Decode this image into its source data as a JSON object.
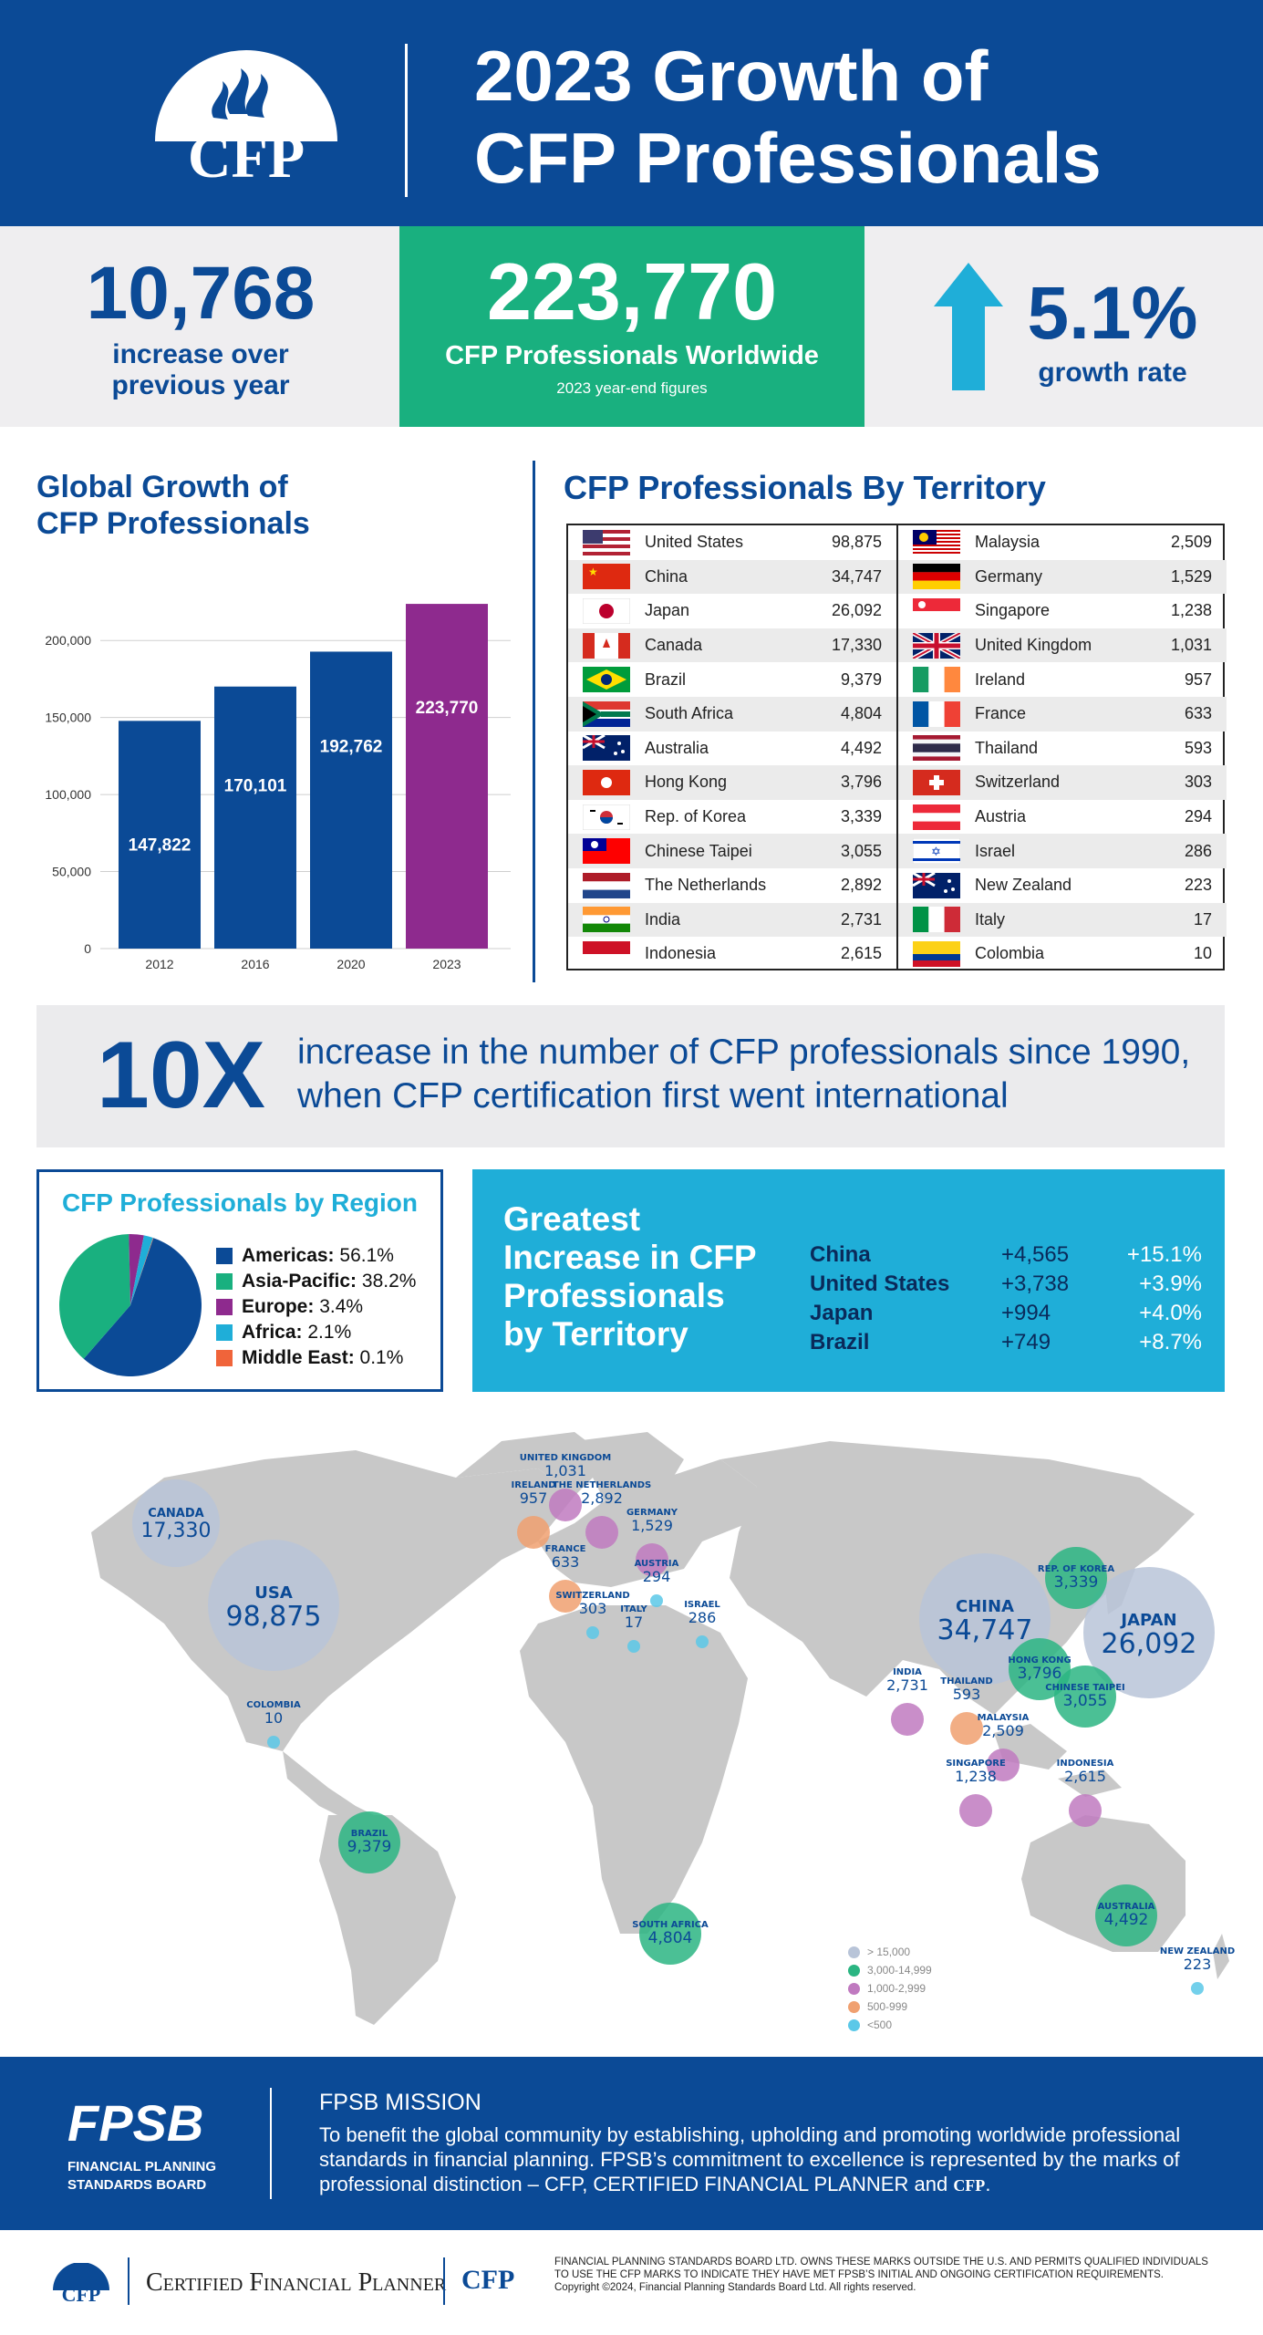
{
  "header": {
    "logo_text": "CFP",
    "title_line1": "2023 Growth of",
    "title_line2": "CFP Professionals",
    "colors": {
      "brand_blue": "#0b4a96",
      "green": "#19b07f",
      "cyan": "#1faed8",
      "purple": "#8e2a8e"
    }
  },
  "stats": {
    "increase_value": "10,768",
    "increase_label1": "increase over",
    "increase_label2": "previous year",
    "total_value": "223,770",
    "total_label": "CFP Professionals Worldwide",
    "total_sub": "2023 year-end figures",
    "growth_value": "5.1%",
    "growth_label": "growth rate",
    "growth_icon": "up-arrow-icon"
  },
  "global_growth": {
    "title_line1": "Global Growth of",
    "title_line2": "CFP Professionals"
  },
  "chart_data": {
    "type": "bar",
    "categories": [
      "2012",
      "2016",
      "2020",
      "2023"
    ],
    "values": [
      147822,
      170101,
      192762,
      223770
    ],
    "value_labels": [
      "147,822",
      "170,101",
      "192,762",
      "223,770"
    ],
    "colors": [
      "#0b4a96",
      "#0b4a96",
      "#0b4a96",
      "#8e2a8e"
    ],
    "ylim": [
      0,
      225000
    ],
    "yticks": [
      0,
      50000,
      100000,
      150000,
      200000
    ],
    "ytick_labels": [
      "0",
      "50,000",
      "100,000",
      "150,000",
      "200,000"
    ],
    "grid": true
  },
  "territory": {
    "title": "CFP Professionals By Territory",
    "left": [
      {
        "name": "United States",
        "value": "98,875",
        "flag": "us"
      },
      {
        "name": "China",
        "value": "34,747",
        "flag": "cn"
      },
      {
        "name": "Japan",
        "value": "26,092",
        "flag": "jp"
      },
      {
        "name": "Canada",
        "value": "17,330",
        "flag": "ca"
      },
      {
        "name": "Brazil",
        "value": "9,379",
        "flag": "br"
      },
      {
        "name": "South Africa",
        "value": "4,804",
        "flag": "za"
      },
      {
        "name": "Australia",
        "value": "4,492",
        "flag": "au"
      },
      {
        "name": "Hong Kong",
        "value": "3,796",
        "flag": "hk"
      },
      {
        "name": "Rep. of Korea",
        "value": "3,339",
        "flag": "kr"
      },
      {
        "name": "Chinese Taipei",
        "value": "3,055",
        "flag": "tw"
      },
      {
        "name": "The Netherlands",
        "value": "2,892",
        "flag": "nl"
      },
      {
        "name": "India",
        "value": "2,731",
        "flag": "in"
      },
      {
        "name": "Indonesia",
        "value": "2,615",
        "flag": "id"
      }
    ],
    "right": [
      {
        "name": "Malaysia",
        "value": "2,509",
        "flag": "my"
      },
      {
        "name": "Germany",
        "value": "1,529",
        "flag": "de"
      },
      {
        "name": "Singapore",
        "value": "1,238",
        "flag": "sg"
      },
      {
        "name": "United Kingdom",
        "value": "1,031",
        "flag": "gb"
      },
      {
        "name": "Ireland",
        "value": "957",
        "flag": "ie"
      },
      {
        "name": "France",
        "value": "633",
        "flag": "fr"
      },
      {
        "name": "Thailand",
        "value": "593",
        "flag": "th"
      },
      {
        "name": "Switzerland",
        "value": "303",
        "flag": "ch"
      },
      {
        "name": "Austria",
        "value": "294",
        "flag": "at"
      },
      {
        "name": "Israel",
        "value": "286",
        "flag": "il"
      },
      {
        "name": "New Zealand",
        "value": "223",
        "flag": "nz"
      },
      {
        "name": "Italy",
        "value": "17",
        "flag": "it"
      },
      {
        "name": "Colombia",
        "value": "10",
        "flag": "co"
      }
    ]
  },
  "tenx": {
    "big": "10X",
    "line1": "increase in the number of CFP professionals since 1990,",
    "line2": "when CFP certification first went international"
  },
  "region": {
    "title": "CFP Professionals by Region",
    "items": [
      {
        "name": "Americas:",
        "pct": "56.1%",
        "value": 56.1,
        "color": "#0b4a96"
      },
      {
        "name": "Asia-Pacific:",
        "pct": "38.2%",
        "value": 38.2,
        "color": "#19b07f"
      },
      {
        "name": "Europe:",
        "pct": "3.4%",
        "value": 3.4,
        "color": "#8e2a8e"
      },
      {
        "name": "Africa:",
        "pct": "2.1%",
        "value": 2.1,
        "color": "#1faed8"
      },
      {
        "name": "Middle East:",
        "pct": "0.1%",
        "value": 0.1,
        "color": "#f0643a"
      }
    ]
  },
  "greatest": {
    "title_lines": [
      "Greatest",
      "Increase in CFP",
      "Professionals",
      "by Territory"
    ],
    "rows": [
      {
        "name": "China",
        "abs": "+4,565",
        "pct": "+15.1%"
      },
      {
        "name": "United States",
        "abs": "+3,738",
        "pct": "+3.9%"
      },
      {
        "name": "Japan",
        "abs": "+994",
        "pct": "+4.0%"
      },
      {
        "name": "Brazil",
        "abs": "+749",
        "pct": "+8.7%"
      }
    ]
  },
  "map": {
    "labels": [
      {
        "name": "CANADA",
        "value": "17,330",
        "size": "big",
        "color": "#b8c4d8"
      },
      {
        "name": "USA",
        "value": "98,875",
        "size": "huge",
        "color": "#b8c4d8"
      },
      {
        "name": "COLOMBIA",
        "value": "10",
        "size": "tiny",
        "color": "#5bc8e8"
      },
      {
        "name": "BRAZIL",
        "value": "9,379",
        "size": "mid",
        "color": "#2bb582"
      },
      {
        "name": "SOUTH AFRICA",
        "value": "4,804",
        "size": "mid",
        "color": "#2bb582"
      },
      {
        "name": "UNITED KINGDOM",
        "value": "1,031",
        "size": "small",
        "color": "#c07ac0"
      },
      {
        "name": "IRELAND",
        "value": "957",
        "size": "small",
        "color": "#f0a070"
      },
      {
        "name": "THE NETHERLANDS",
        "value": "2,892",
        "size": "small",
        "color": "#c07ac0"
      },
      {
        "name": "GERMANY",
        "value": "1,529",
        "size": "small",
        "color": "#c07ac0"
      },
      {
        "name": "FRANCE",
        "value": "633",
        "size": "small",
        "color": "#f0a070"
      },
      {
        "name": "AUSTRIA",
        "value": "294",
        "size": "tiny",
        "color": "#5bc8e8"
      },
      {
        "name": "SWITZERLAND",
        "value": "303",
        "size": "tiny",
        "color": "#5bc8e8"
      },
      {
        "name": "ITALY",
        "value": "17",
        "size": "tiny",
        "color": "#5bc8e8"
      },
      {
        "name": "ISRAEL",
        "value": "286",
        "size": "tiny",
        "color": "#5bc8e8"
      },
      {
        "name": "CHINA",
        "value": "34,747",
        "size": "huge",
        "color": "#b8c4d8"
      },
      {
        "name": "JAPAN",
        "value": "26,092",
        "size": "huge",
        "color": "#b8c4d8"
      },
      {
        "name": "REP. OF KOREA",
        "value": "3,339",
        "size": "mid",
        "color": "#2bb582"
      },
      {
        "name": "HONG KONG",
        "value": "3,796",
        "size": "mid",
        "color": "#2bb582"
      },
      {
        "name": "CHINESE TAIPEI",
        "value": "3,055",
        "size": "mid",
        "color": "#2bb582"
      },
      {
        "name": "INDIA",
        "value": "2,731",
        "size": "small",
        "color": "#c07ac0"
      },
      {
        "name": "THAILAND",
        "value": "593",
        "size": "small",
        "color": "#f0a070"
      },
      {
        "name": "MALAYSIA",
        "value": "2,509",
        "size": "small",
        "color": "#c07ac0"
      },
      {
        "name": "SINGAPORE",
        "value": "1,238",
        "size": "small",
        "color": "#c07ac0"
      },
      {
        "name": "INDONESIA",
        "value": "2,615",
        "size": "small",
        "color": "#c07ac0"
      },
      {
        "name": "AUSTRALIA",
        "value": "4,492",
        "size": "mid",
        "color": "#2bb582"
      },
      {
        "name": "NEW ZEALAND",
        "value": "223",
        "size": "tiny",
        "color": "#5bc8e8"
      }
    ],
    "legend": [
      {
        "label": "> 15,000",
        "color": "#b8c4d8"
      },
      {
        "label": "3,000-14,999",
        "color": "#2bb582"
      },
      {
        "label": "1,000-2,999",
        "color": "#c07ac0"
      },
      {
        "label": "500-999",
        "color": "#f0a070"
      },
      {
        "label": "<500",
        "color": "#5bc8e8"
      }
    ]
  },
  "footer": {
    "fpsb_logo": "FPSB",
    "fpsb_name1": "FINANCIAL PLANNING",
    "fpsb_name2": "STANDARDS BOARD",
    "mission_title": "FPSB MISSION",
    "mission_text": "To benefit the global community by establishing, upholding and promoting worldwide professional standards in financial planning. FPSB’s commitment to excellence is represented by the marks of professional distinction – CFP, CERTIFIED FINANCIAL PLANNER and",
    "cfp_small_logo": "CFP"
  },
  "bottom": {
    "logo1": "CFP",
    "certified": "Certified Financial Planner",
    "logo2": "CFP",
    "legal1": "FINANCIAL PLANNING STANDARDS BOARD LTD. OWNS THESE MARKS OUTSIDE THE U.S. AND PERMITS QUALIFIED INDIVIDUALS",
    "legal2": "TO USE THE CFP MARKS TO INDICATE THEY HAVE MET FPSB’S INITIAL AND ONGOING CERTIFICATION REQUIREMENTS.",
    "legal3": "Copyright ©2024, Financial Planning Standards Board Ltd. All rights reserved."
  }
}
